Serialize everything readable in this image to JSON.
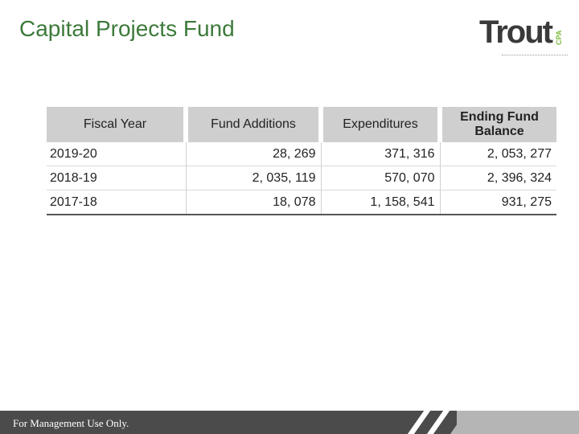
{
  "page": {
    "title": "Capital Projects Fund",
    "footer": "For Management Use Only."
  },
  "logo": {
    "word": "Trout",
    "suffix": "CPA"
  },
  "table": {
    "headers": [
      "Fiscal Year",
      "Fund Additions",
      "Expenditures",
      "Ending Fund Balance"
    ],
    "rows": [
      [
        "2019-20",
        "28, 269",
        "371, 316",
        "2, 053, 277"
      ],
      [
        "2018-19",
        "2, 035, 119",
        "570, 070",
        "2, 396, 324"
      ],
      [
        "2017-18",
        "18, 078",
        "1, 158, 541",
        "931, 275"
      ]
    ]
  },
  "colors": {
    "title": "#3d7a3a",
    "header_bg": "#cfcfcf",
    "footer_bg": "#4b4b4b",
    "logo_accent": "#7dba3a"
  }
}
